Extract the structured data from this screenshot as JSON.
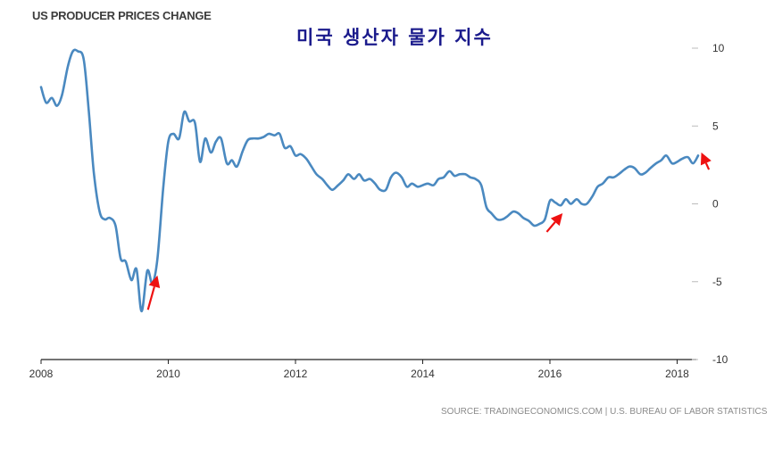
{
  "header": {
    "title": "US PRODUCER PRICES CHANGE",
    "korean_title": "미국 생산자 물가 지수"
  },
  "footer": {
    "source": "SOURCE: TRADINGECONOMICS.COM | U.S. BUREAU OF LABOR STATISTICS"
  },
  "colors": {
    "line": "#4a89c0",
    "arrow": "#ee1111",
    "axis": "#222222",
    "grid": "#eeeeee"
  },
  "chart_data": {
    "type": "line",
    "title": "US PRODUCER PRICES CHANGE",
    "xlabel": "",
    "ylabel": "",
    "xlim": [
      2008.0,
      2018.47
    ],
    "ylim": [
      -10,
      10
    ],
    "x_ticks": [
      2008,
      2010,
      2012,
      2014,
      2016,
      2018
    ],
    "x_tick_labels": [
      "2008",
      "2010",
      "2012",
      "2014",
      "2016",
      "2018"
    ],
    "y_ticks": [
      10,
      5,
      0,
      -5,
      -10
    ],
    "y_tick_labels": [
      "10",
      "5",
      "0",
      "-5",
      "-10"
    ],
    "y_axis_side": "right",
    "grid": false,
    "series": [
      {
        "values": [
          [
            2008.0,
            7.5
          ],
          [
            2008.08,
            6.5
          ],
          [
            2008.17,
            6.8
          ],
          [
            2008.25,
            6.3
          ],
          [
            2008.33,
            7.0
          ],
          [
            2008.42,
            8.8
          ],
          [
            2008.5,
            9.8
          ],
          [
            2008.58,
            9.8
          ],
          [
            2008.67,
            9.3
          ],
          [
            2008.75,
            6.0
          ],
          [
            2008.83,
            2.0
          ],
          [
            2008.92,
            -0.5
          ],
          [
            2009.0,
            -1.0
          ],
          [
            2009.08,
            -0.9
          ],
          [
            2009.17,
            -1.4
          ],
          [
            2009.25,
            -3.5
          ],
          [
            2009.33,
            -3.7
          ],
          [
            2009.42,
            -4.9
          ],
          [
            2009.5,
            -4.2
          ],
          [
            2009.58,
            -6.9
          ],
          [
            2009.67,
            -4.3
          ],
          [
            2009.75,
            -5.1
          ],
          [
            2009.83,
            -3.5
          ],
          [
            2009.92,
            1.0
          ],
          [
            2010.0,
            4.0
          ],
          [
            2010.08,
            4.5
          ],
          [
            2010.17,
            4.2
          ],
          [
            2010.25,
            5.9
          ],
          [
            2010.33,
            5.3
          ],
          [
            2010.42,
            5.2
          ],
          [
            2010.5,
            2.7
          ],
          [
            2010.58,
            4.2
          ],
          [
            2010.67,
            3.3
          ],
          [
            2010.75,
            4.0
          ],
          [
            2010.83,
            4.2
          ],
          [
            2010.92,
            2.6
          ],
          [
            2011.0,
            2.8
          ],
          [
            2011.08,
            2.4
          ],
          [
            2011.17,
            3.4
          ],
          [
            2011.25,
            4.1
          ],
          [
            2011.33,
            4.2
          ],
          [
            2011.42,
            4.2
          ],
          [
            2011.5,
            4.3
          ],
          [
            2011.58,
            4.5
          ],
          [
            2011.67,
            4.4
          ],
          [
            2011.75,
            4.5
          ],
          [
            2011.83,
            3.6
          ],
          [
            2011.92,
            3.7
          ],
          [
            2012.0,
            3.1
          ],
          [
            2012.08,
            3.2
          ],
          [
            2012.17,
            2.9
          ],
          [
            2012.25,
            2.4
          ],
          [
            2012.33,
            1.9
          ],
          [
            2012.42,
            1.6
          ],
          [
            2012.5,
            1.2
          ],
          [
            2012.58,
            0.9
          ],
          [
            2012.67,
            1.2
          ],
          [
            2012.75,
            1.5
          ],
          [
            2012.83,
            1.9
          ],
          [
            2012.92,
            1.6
          ],
          [
            2013.0,
            1.9
          ],
          [
            2013.08,
            1.5
          ],
          [
            2013.17,
            1.6
          ],
          [
            2013.25,
            1.3
          ],
          [
            2013.33,
            0.9
          ],
          [
            2013.42,
            0.9
          ],
          [
            2013.5,
            1.7
          ],
          [
            2013.58,
            2.0
          ],
          [
            2013.67,
            1.7
          ],
          [
            2013.75,
            1.1
          ],
          [
            2013.83,
            1.3
          ],
          [
            2013.92,
            1.1
          ],
          [
            2014.0,
            1.2
          ],
          [
            2014.08,
            1.3
          ],
          [
            2014.17,
            1.2
          ],
          [
            2014.25,
            1.6
          ],
          [
            2014.33,
            1.7
          ],
          [
            2014.42,
            2.1
          ],
          [
            2014.5,
            1.8
          ],
          [
            2014.58,
            1.9
          ],
          [
            2014.67,
            1.9
          ],
          [
            2014.75,
            1.7
          ],
          [
            2014.83,
            1.6
          ],
          [
            2014.92,
            1.2
          ],
          [
            2015.0,
            -0.2
          ],
          [
            2015.08,
            -0.6
          ],
          [
            2015.17,
            -1.0
          ],
          [
            2015.25,
            -1.0
          ],
          [
            2015.33,
            -0.8
          ],
          [
            2015.42,
            -0.5
          ],
          [
            2015.5,
            -0.6
          ],
          [
            2015.58,
            -0.9
          ],
          [
            2015.67,
            -1.1
          ],
          [
            2015.75,
            -1.4
          ],
          [
            2015.83,
            -1.3
          ],
          [
            2015.92,
            -1.0
          ],
          [
            2016.0,
            0.2
          ],
          [
            2016.08,
            0.1
          ],
          [
            2016.17,
            -0.1
          ],
          [
            2016.25,
            0.3
          ],
          [
            2016.33,
            0.0
          ],
          [
            2016.42,
            0.3
          ],
          [
            2016.5,
            0.0
          ],
          [
            2016.58,
            0.0
          ],
          [
            2016.67,
            0.5
          ],
          [
            2016.75,
            1.1
          ],
          [
            2016.83,
            1.3
          ],
          [
            2016.92,
            1.7
          ],
          [
            2017.0,
            1.7
          ],
          [
            2017.08,
            1.9
          ],
          [
            2017.17,
            2.2
          ],
          [
            2017.25,
            2.4
          ],
          [
            2017.33,
            2.3
          ],
          [
            2017.42,
            1.9
          ],
          [
            2017.5,
            2.0
          ],
          [
            2017.58,
            2.3
          ],
          [
            2017.67,
            2.6
          ],
          [
            2017.75,
            2.8
          ],
          [
            2017.83,
            3.1
          ],
          [
            2017.92,
            2.6
          ],
          [
            2018.0,
            2.7
          ],
          [
            2018.08,
            2.9
          ],
          [
            2018.17,
            3.0
          ],
          [
            2018.25,
            2.6
          ],
          [
            2018.33,
            3.1
          ]
        ]
      }
    ],
    "annotations": [
      {
        "type": "arrow",
        "target_x": 2009.83,
        "target_y": -4.6,
        "tail_x": 2009.68,
        "tail_y": -6.8
      },
      {
        "type": "arrow",
        "target_x": 2016.2,
        "target_y": -0.6,
        "tail_x": 2015.95,
        "tail_y": -1.8
      },
      {
        "type": "arrow",
        "target_x": 2018.38,
        "target_y": 3.3,
        "tail_x": 2018.5,
        "tail_y": 2.2
      }
    ]
  }
}
